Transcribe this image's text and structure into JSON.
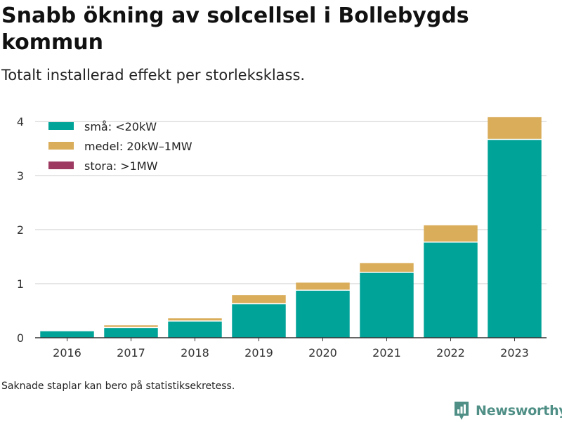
{
  "title": "Snabb ökning av solcellsel i Bollebygds kommun",
  "subtitle": "Totalt installerad effekt per storleksklass.",
  "footnote": "Saknade staplar kan bero på statistiksekretess.",
  "brand": {
    "name": "Newsworthy",
    "icon": "newsworthy-logo-icon"
  },
  "colors": {
    "small": "#00a398",
    "medium": "#d9ad5a",
    "large": "#9e3a62",
    "grid": "#dddddd",
    "axis": "#333333"
  },
  "chart_data": {
    "type": "bar",
    "stacked": true,
    "categories": [
      "2016",
      "2017",
      "2018",
      "2019",
      "2020",
      "2021",
      "2022",
      "2023"
    ],
    "series": [
      {
        "name": "små: <20kW",
        "color": "#00a398",
        "values": [
          0.12,
          0.18,
          0.3,
          0.62,
          0.87,
          1.2,
          1.76,
          3.66
        ]
      },
      {
        "name": "medel: 20kW–1MW",
        "color": "#d9ad5a",
        "values": [
          0.0,
          0.05,
          0.06,
          0.17,
          0.15,
          0.18,
          0.32,
          0.42
        ]
      },
      {
        "name": "stora: >1MW",
        "color": "#9e3a62",
        "values": [
          0,
          0,
          0,
          0,
          0,
          0,
          0,
          0
        ]
      }
    ],
    "y_ticks": [
      0,
      1,
      2,
      3,
      4
    ],
    "ylim": [
      0,
      4.3
    ],
    "xlabel": "",
    "ylabel": "",
    "grid": true,
    "legend_position": "top-left"
  }
}
